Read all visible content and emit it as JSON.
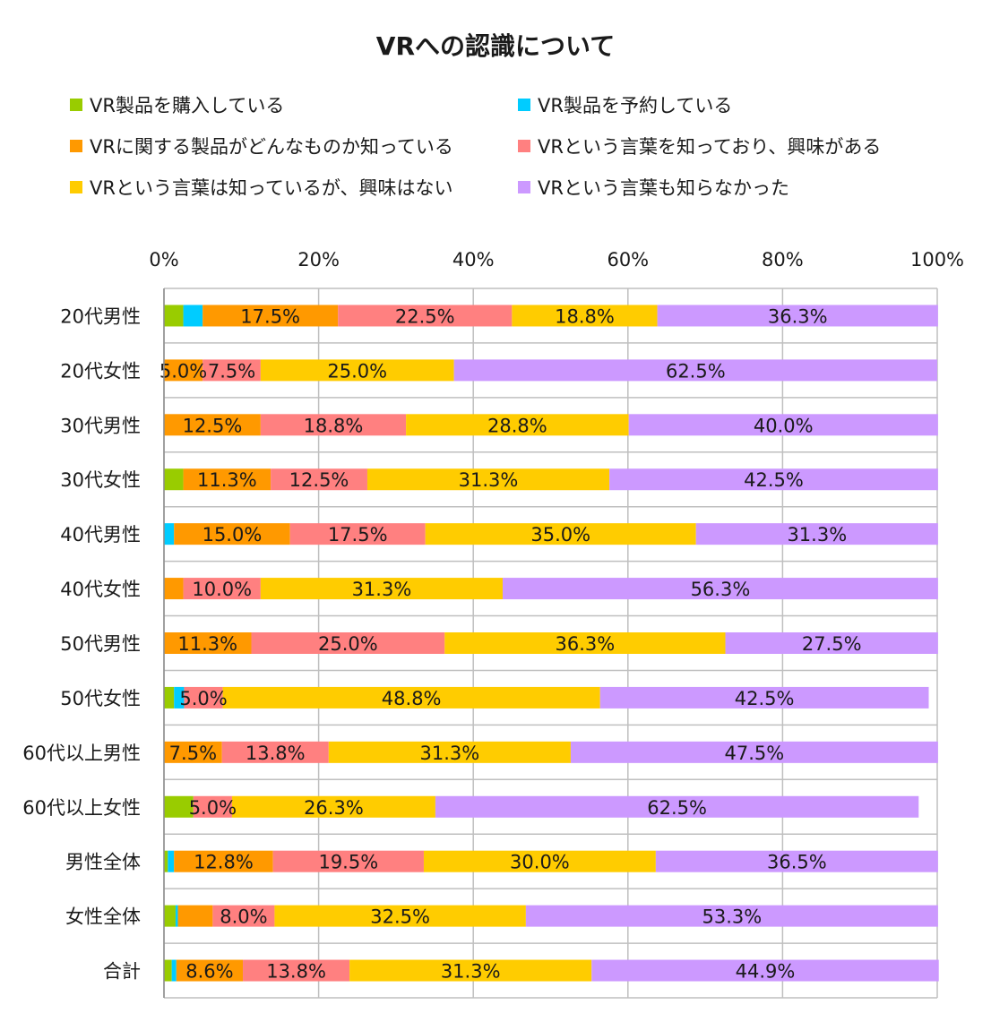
{
  "chart_data": {
    "type": "bar",
    "orientation": "horizontal",
    "stacked": true,
    "title": "VRへの認識について",
    "categories": [
      "20代男性",
      "20代女性",
      "30代男性",
      "30代女性",
      "40代男性",
      "40代女性",
      "50代男性",
      "50代女性",
      "60代以上男性",
      "60代以上女性",
      "男性全体",
      "女性全体",
      "合計"
    ],
    "series": [
      {
        "name": "VR製品を購入している",
        "color": "#99CC00",
        "values": [
          2.5,
          0,
          0,
          2.5,
          0,
          0,
          0,
          1.3,
          0,
          3.8,
          0.5,
          1.5,
          1.0
        ]
      },
      {
        "name": "VR製品を予約している",
        "color": "#00CCFF",
        "values": [
          2.5,
          0,
          0,
          0,
          1.3,
          0,
          0,
          1.3,
          0,
          0,
          0.8,
          0.3,
          0.6
        ]
      },
      {
        "name": "VRに関する製品がどんなものか知っている",
        "color": "#FF9900",
        "values": [
          17.5,
          5.0,
          12.5,
          11.3,
          15.0,
          2.5,
          11.3,
          0,
          7.5,
          0,
          12.8,
          4.5,
          8.6
        ]
      },
      {
        "name": "VRという言葉を知っており、興味がある",
        "color": "#FF8080",
        "values": [
          22.5,
          7.5,
          18.8,
          12.5,
          17.5,
          10.0,
          25.0,
          5.0,
          13.8,
          5.0,
          19.5,
          8.0,
          13.8
        ]
      },
      {
        "name": "VRという言葉は知っているが、興味はない",
        "color": "#FFCC00",
        "values": [
          18.8,
          25.0,
          28.8,
          31.3,
          35.0,
          31.3,
          36.3,
          48.8,
          31.3,
          26.3,
          30.0,
          32.5,
          31.3
        ]
      },
      {
        "name": "VRという言葉も知らなかった",
        "color": "#CC99FF",
        "values": [
          36.3,
          62.5,
          40.0,
          42.5,
          31.3,
          56.3,
          27.5,
          42.5,
          47.5,
          62.5,
          36.5,
          53.3,
          44.9
        ]
      }
    ],
    "data_labels": [
      [
        null,
        null,
        "17.5%",
        "22.5%",
        "18.8%",
        "36.3%"
      ],
      [
        null,
        null,
        "5.0%",
        "7.5%",
        "25.0%",
        "62.5%"
      ],
      [
        null,
        null,
        "12.5%",
        "18.8%",
        "28.8%",
        "40.0%"
      ],
      [
        null,
        null,
        "11.3%",
        "12.5%",
        "31.3%",
        "42.5%"
      ],
      [
        null,
        null,
        "15.0%",
        "17.5%",
        "35.0%",
        "31.3%"
      ],
      [
        null,
        null,
        null,
        "10.0%",
        "31.3%",
        "56.3%"
      ],
      [
        null,
        null,
        "11.3%",
        "25.0%",
        "36.3%",
        "27.5%"
      ],
      [
        null,
        null,
        null,
        "5.0%",
        "48.8%",
        "42.5%"
      ],
      [
        null,
        null,
        "7.5%",
        "13.8%",
        "31.3%",
        "47.5%"
      ],
      [
        null,
        null,
        null,
        "5.0%",
        "26.3%",
        "62.5%"
      ],
      [
        null,
        null,
        "12.8%",
        "19.5%",
        "30.0%",
        "36.5%"
      ],
      [
        null,
        null,
        null,
        "8.0%",
        "32.5%",
        "53.3%"
      ],
      [
        null,
        null,
        "8.6%",
        "13.8%",
        "31.3%",
        "44.9%"
      ]
    ],
    "xlim": [
      0,
      100
    ],
    "x_ticks": [
      "0%",
      "20%",
      "40%",
      "60%",
      "80%",
      "100%"
    ],
    "grid": true,
    "legend_position": "top"
  }
}
